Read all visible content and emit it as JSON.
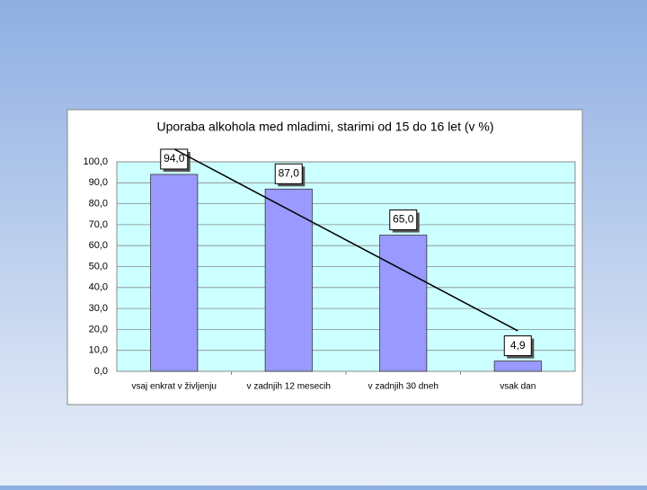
{
  "chart_data": {
    "type": "bar",
    "title": "Uporaba alkohola med mladimi, starimi od 15 do 16 let (v %)",
    "categories": [
      "vsaj enkrat v življenju",
      "v zadnjih 12 mesecih",
      "v zadnjih 30 dneh",
      "vsak dan"
    ],
    "values": [
      94.0,
      87.0,
      65.0,
      4.9
    ],
    "value_labels": [
      "94,0",
      "87,0",
      "65,0",
      "4,9"
    ],
    "color": "#9999ff",
    "ylim": [
      0,
      100
    ],
    "yticks": [
      {
        "value": 0,
        "label": "0,0"
      },
      {
        "value": 10,
        "label": "10,0"
      },
      {
        "value": 20,
        "label": "20,0"
      },
      {
        "value": 30,
        "label": "30,0"
      },
      {
        "value": 40,
        "label": "40,0"
      },
      {
        "value": 50,
        "label": "50,0"
      },
      {
        "value": 60,
        "label": "60,0"
      },
      {
        "value": 70,
        "label": "70,0"
      },
      {
        "value": 80,
        "label": "80,0"
      },
      {
        "value": 90,
        "label": "90,0"
      },
      {
        "value": 100,
        "label": "100,0"
      }
    ],
    "grid": true,
    "trendline": "linear"
  }
}
